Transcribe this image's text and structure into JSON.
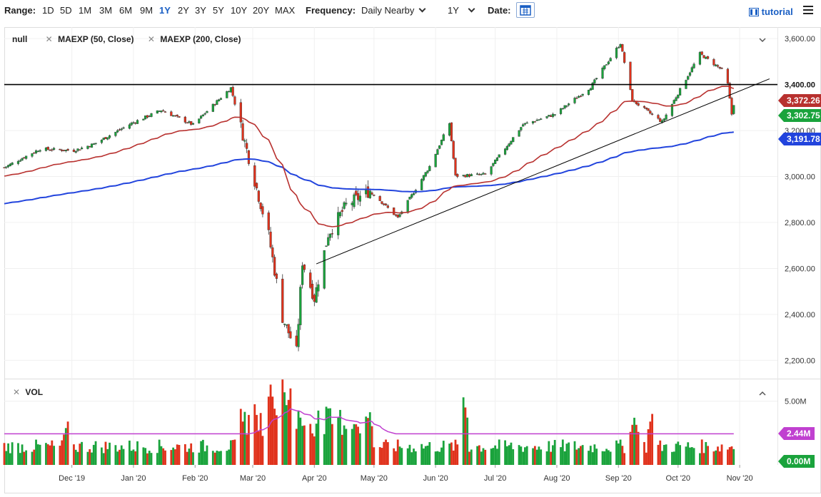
{
  "toolbar": {
    "range_label": "Range:",
    "ranges": [
      "1D",
      "5D",
      "1M",
      "3M",
      "6M",
      "9M",
      "1Y",
      "2Y",
      "3Y",
      "5Y",
      "10Y",
      "20Y",
      "MAX"
    ],
    "active_range": "1Y",
    "frequency_label": "Frequency:",
    "frequency_value": "Daily Nearby",
    "period_value": "1Y",
    "date_label": "Date:",
    "tutorial_label": "tutorial",
    "icons": [
      "calendar-icon",
      "tutorial-icon",
      "menu-icon",
      "chevron-down-icon"
    ]
  },
  "legend": {
    "main_title": "null",
    "ma50": "MAEXP (50, Close)",
    "ma200": "MAEXP (200, Close)",
    "vol_title": "VOL"
  },
  "colors": {
    "up": "#1aa33c",
    "down": "#e0321c",
    "ma50": "#b8312f",
    "ma200": "#2244dd",
    "vol_ma": "#c040d0",
    "hline": "#000000"
  },
  "chart_data": [
    {
      "type": "candlestick",
      "title": "",
      "ylim": [
        2130,
        3650
      ],
      "y_ticks": [
        "3,600.00",
        "3,400.00",
        "3,200.00",
        "3,000.00",
        "2,800.00",
        "2,600.00",
        "2,400.00",
        "2,200.00"
      ],
      "y_tick_values": [
        3600,
        3400,
        3200,
        3000,
        2800,
        2600,
        2400,
        2200
      ],
      "x_ticks": [
        "Dec '19",
        "Jan '20",
        "Feb '20",
        "Mar '20",
        "Apr '20",
        "May '20",
        "Jun '20",
        "Jul '20",
        "Aug '20",
        "Sep '20",
        "Oct '20",
        "Nov '20"
      ],
      "x_tick_dates": [
        "2019-12-01",
        "2020-01-01",
        "2020-02-01",
        "2020-03-01",
        "2020-04-01",
        "2020-05-01",
        "2020-06-01",
        "2020-07-01",
        "2020-08-01",
        "2020-09-01",
        "2020-10-01",
        "2020-11-01"
      ],
      "date_range": [
        "2019-10-28",
        "2020-11-20"
      ],
      "close_keypoints": [
        [
          "2019-10-28",
          3039
        ],
        [
          "2019-11-15",
          3120
        ],
        [
          "2019-12-02",
          3113
        ],
        [
          "2019-12-12",
          3141
        ],
        [
          "2019-12-31",
          3231
        ],
        [
          "2020-01-15",
          3289
        ],
        [
          "2020-01-31",
          3225
        ],
        [
          "2020-02-19",
          3386
        ],
        [
          "2020-02-27",
          3116
        ],
        [
          "2020-03-09",
          2746
        ],
        [
          "2020-03-16",
          2386
        ],
        [
          "2020-03-23",
          2237
        ],
        [
          "2020-03-26",
          2630
        ],
        [
          "2020-04-01",
          2470
        ],
        [
          "2020-04-08",
          2750
        ],
        [
          "2020-04-17",
          2875
        ],
        [
          "2020-04-29",
          2939
        ],
        [
          "2020-05-13",
          2820
        ],
        [
          "2020-05-29",
          3044
        ],
        [
          "2020-06-08",
          3232
        ],
        [
          "2020-06-11",
          3002
        ],
        [
          "2020-06-26",
          3009
        ],
        [
          "2020-07-15",
          3226
        ],
        [
          "2020-07-31",
          3271
        ],
        [
          "2020-08-18",
          3389
        ],
        [
          "2020-09-02",
          3580
        ],
        [
          "2020-09-08",
          3331
        ],
        [
          "2020-09-23",
          3237
        ],
        [
          "2020-10-12",
          3534
        ],
        [
          "2020-10-23",
          3465
        ],
        [
          "2020-10-26",
          3401
        ],
        [
          "2020-10-28",
          3271
        ],
        [
          "2020-10-29",
          3310
        ]
      ],
      "ma50_last": "3,372.26",
      "ma200_last": "3,191.78",
      "last_price": "3,302.75",
      "hline_level": 3400,
      "hline_label": "3,400.00",
      "trendline": [
        [
          "2020-04-02",
          2620
        ],
        [
          "2020-11-16",
          3425
        ]
      ],
      "legend": [
        "MAEXP (50, Close)",
        "MAEXP (200, Close)"
      ]
    },
    {
      "type": "bar",
      "title": "VOL",
      "y_ticks": [
        "5.00M"
      ],
      "ylim": [
        0,
        6.6
      ],
      "last_value_label": "2.44M",
      "zero_label": "0.00M",
      "avg_volume_m": 2.44,
      "spikes_m": [
        [
          "2019-11-29",
          3.4
        ],
        [
          "2020-02-24",
          4.0
        ],
        [
          "2020-03-01",
          5.6
        ],
        [
          "2020-03-10",
          6.3
        ],
        [
          "2020-03-16",
          6.7
        ],
        [
          "2020-03-20",
          6.0
        ],
        [
          "2020-06-15",
          5.3
        ],
        [
          "2020-09-09",
          3.7
        ],
        [
          "2020-09-18",
          4.0
        ]
      ]
    }
  ]
}
